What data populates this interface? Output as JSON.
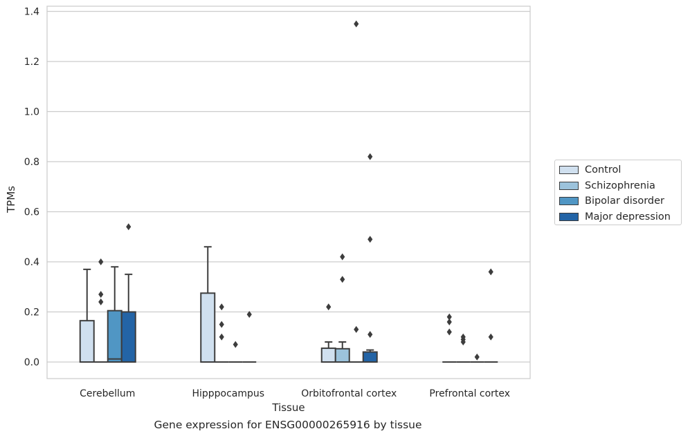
{
  "chart_data": {
    "type": "box",
    "title": "Gene expression for ENSG00000265916 by tissue",
    "xlabel": "Tissue",
    "ylabel": "TPMs",
    "ylim": [
      -0.065,
      1.42
    ],
    "yticks": [
      0.0,
      0.2,
      0.4,
      0.6,
      0.8,
      1.0,
      1.2,
      1.4
    ],
    "ytick_labels": [
      "0.0",
      "0.2",
      "0.4",
      "0.6",
      "0.8",
      "1.0",
      "1.2",
      "1.4"
    ],
    "categories": [
      "Cerebellum",
      "Hipppocampus",
      "Orbitofrontal cortex",
      "Prefrontal cortex"
    ],
    "grid": true,
    "legend_position": "right",
    "series": [
      {
        "name": "Control",
        "color": "#d0e0ef",
        "boxes": [
          {
            "q1": 0.0,
            "median": 0.0,
            "q3": 0.165,
            "whislo": 0.0,
            "whishi": 0.37,
            "fliers": []
          },
          {
            "q1": 0.0,
            "median": 0.0,
            "q3": 0.275,
            "whislo": 0.0,
            "whishi": 0.46,
            "fliers": []
          },
          {
            "q1": 0.0,
            "median": 0.0,
            "q3": 0.055,
            "whislo": 0.0,
            "whishi": 0.08,
            "fliers": [
              0.22
            ]
          },
          {
            "q1": 0.0,
            "median": 0.0,
            "q3": 0.0,
            "whislo": 0.0,
            "whishi": 0.0,
            "fliers": [
              0.12,
              0.16,
              0.18
            ]
          }
        ]
      },
      {
        "name": "Schizophrenia",
        "color": "#9cc3dc",
        "boxes": [
          {
            "q1": 0.0,
            "median": 0.0,
            "q3": 0.0,
            "whislo": 0.0,
            "whishi": 0.0,
            "fliers": [
              0.24,
              0.27,
              0.4
            ]
          },
          {
            "q1": 0.0,
            "median": 0.0,
            "q3": 0.0,
            "whislo": 0.0,
            "whishi": 0.0,
            "fliers": [
              0.1,
              0.15,
              0.22
            ]
          },
          {
            "q1": 0.0,
            "median": 0.0,
            "q3": 0.053,
            "whislo": 0.0,
            "whishi": 0.08,
            "fliers": [
              0.33,
              0.42
            ]
          },
          {
            "q1": 0.0,
            "median": 0.0,
            "q3": 0.0,
            "whislo": 0.0,
            "whishi": 0.0,
            "fliers": [
              0.08,
              0.09,
              0.1
            ]
          }
        ]
      },
      {
        "name": "Bipolar disorder",
        "color": "#5096c4",
        "boxes": [
          {
            "q1": 0.0,
            "median": 0.012,
            "q3": 0.205,
            "whislo": 0.0,
            "whishi": 0.38,
            "fliers": []
          },
          {
            "q1": 0.0,
            "median": 0.0,
            "q3": 0.0,
            "whislo": 0.0,
            "whishi": 0.0,
            "fliers": [
              0.07
            ]
          },
          {
            "q1": 0.0,
            "median": 0.0,
            "q3": 0.0,
            "whislo": 0.0,
            "whishi": 0.0,
            "fliers": [
              0.13,
              1.35
            ]
          },
          {
            "q1": 0.0,
            "median": 0.0,
            "q3": 0.0,
            "whislo": 0.0,
            "whishi": 0.0,
            "fliers": [
              0.02
            ]
          }
        ]
      },
      {
        "name": "Major depression",
        "color": "#2364a6",
        "boxes": [
          {
            "q1": 0.0,
            "median": 0.0,
            "q3": 0.2,
            "whislo": 0.0,
            "whishi": 0.35,
            "fliers": [
              0.54
            ]
          },
          {
            "q1": 0.0,
            "median": 0.0,
            "q3": 0.0,
            "whislo": 0.0,
            "whishi": 0.0,
            "fliers": [
              0.19
            ]
          },
          {
            "q1": 0.0,
            "median": 0.0,
            "q3": 0.04,
            "whislo": 0.0,
            "whishi": 0.048,
            "fliers": [
              0.11,
              0.49,
              0.82
            ]
          },
          {
            "q1": 0.0,
            "median": 0.0,
            "q3": 0.0,
            "whislo": 0.0,
            "whishi": 0.0,
            "fliers": [
              0.1,
              0.36
            ]
          }
        ]
      }
    ]
  }
}
